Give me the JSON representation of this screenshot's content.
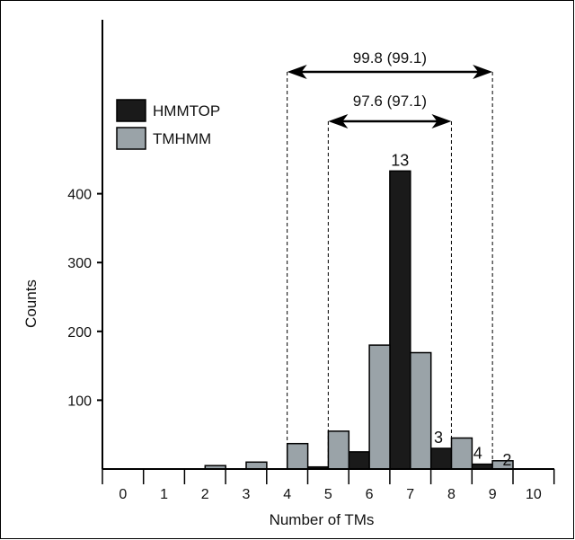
{
  "chart_data": {
    "type": "bar",
    "xlabel": "Number of TMs",
    "ylabel": "Counts",
    "categories": [
      "0",
      "1",
      "2",
      "3",
      "4",
      "5",
      "6",
      "7",
      "8",
      "9",
      "10"
    ],
    "ylim": [
      0,
      560
    ],
    "y_ticks": [
      100,
      200,
      300,
      400
    ],
    "colors": {
      "HMMTOP": "#1a1a1a",
      "TMHMM": "#9aa3a8"
    },
    "series": [
      {
        "name": "HMMTOP",
        "values": [
          0,
          0,
          0,
          0,
          0,
          3,
          25,
          433,
          30,
          7,
          0
        ]
      },
      {
        "name": "TMHMM",
        "values": [
          0,
          0,
          5,
          10,
          37,
          55,
          180,
          169,
          45,
          12,
          0
        ]
      }
    ],
    "bar_labels": [
      {
        "category": "7",
        "series": "HMMTOP",
        "text": "13"
      },
      {
        "category": "8",
        "series": "HMMTOP",
        "text": "3"
      },
      {
        "category": "9",
        "series": "HMMTOP",
        "text": "4"
      },
      {
        "category": "10",
        "series": "HMMTOP",
        "text": "2"
      }
    ],
    "range_annotations": [
      {
        "from": 4.5,
        "to": 9.5,
        "label": "99.8 (99.1)"
      },
      {
        "from": 5.5,
        "to": 8.5,
        "label": "97.6 (97.1)"
      }
    ],
    "legend_position": "upper-left",
    "grid": false
  }
}
